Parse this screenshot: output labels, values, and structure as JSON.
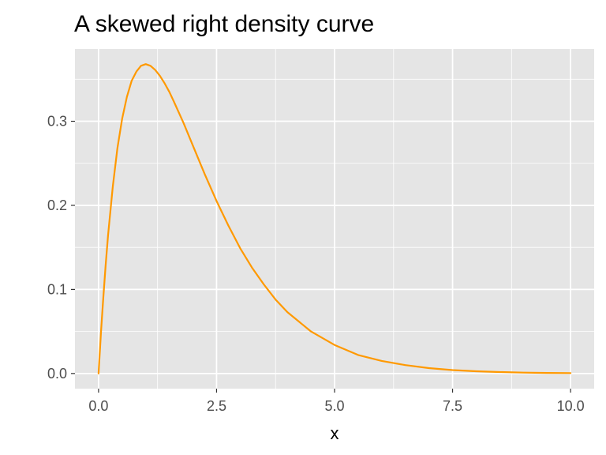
{
  "chart_data": {
    "type": "line",
    "title": "A skewed right density curve",
    "xlabel": "x",
    "ylabel": "",
    "xlim": [
      -0.5,
      10.5
    ],
    "ylim": [
      -0.018,
      0.386
    ],
    "x_ticks": [
      {
        "value": 0,
        "label": "0.0"
      },
      {
        "value": 2.5,
        "label": "2.5"
      },
      {
        "value": 5,
        "label": "5.0"
      },
      {
        "value": 7.5,
        "label": "7.5"
      },
      {
        "value": 10,
        "label": "10.0"
      }
    ],
    "y_ticks": [
      {
        "value": 0,
        "label": "0.0"
      },
      {
        "value": 0.1,
        "label": "0.1"
      },
      {
        "value": 0.2,
        "label": "0.2"
      },
      {
        "value": 0.3,
        "label": "0.3"
      }
    ],
    "grid": true,
    "legend": "none",
    "series": [
      {
        "color": "#ff9900",
        "x": [
          0,
          0.05,
          0.1,
          0.15,
          0.2,
          0.3,
          0.4,
          0.5,
          0.6,
          0.7,
          0.8,
          0.9,
          1.0,
          1.1,
          1.2,
          1.3,
          1.4,
          1.5,
          1.6,
          1.8,
          2.0,
          2.25,
          2.5,
          2.75,
          3.0,
          3.25,
          3.5,
          3.75,
          4.0,
          4.5,
          5.0,
          5.5,
          6.0,
          6.5,
          7.0,
          7.5,
          8.0,
          8.5,
          9.0,
          9.5,
          10.0
        ],
        "y": [
          0,
          0.048,
          0.09,
          0.129,
          0.164,
          0.222,
          0.268,
          0.303,
          0.329,
          0.348,
          0.359,
          0.366,
          0.368,
          0.366,
          0.361,
          0.354,
          0.345,
          0.335,
          0.323,
          0.298,
          0.271,
          0.237,
          0.205,
          0.176,
          0.149,
          0.126,
          0.106,
          0.088,
          0.073,
          0.05,
          0.034,
          0.022,
          0.015,
          0.01,
          0.0064,
          0.0041,
          0.0027,
          0.0017,
          0.0011,
          0.0007,
          0.0005
        ]
      }
    ]
  },
  "colors": {
    "panel_background": "#e5e5e5",
    "grid": "#ffffff",
    "line": "#ff9900"
  }
}
